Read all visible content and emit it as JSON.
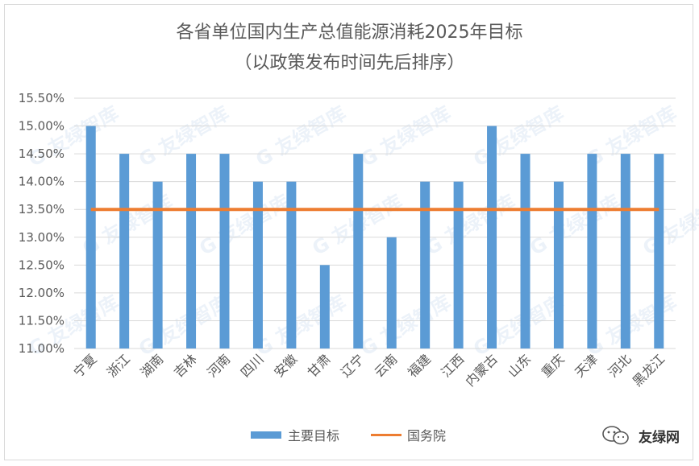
{
  "chart_data": {
    "type": "bar",
    "title": "各省单位国内生产总值能源消耗2025年目标",
    "subtitle": "（以政策发布时间先后排序）",
    "categories": [
      "宁夏",
      "浙江",
      "湖南",
      "吉林",
      "河南",
      "四川",
      "安徽",
      "甘肃",
      "辽宁",
      "云南",
      "福建",
      "江西",
      "内蒙古",
      "山东",
      "重庆",
      "天津",
      "河北",
      "黑龙江"
    ],
    "series": [
      {
        "name": "主要目标",
        "type": "bar",
        "color": "#5b9bd5",
        "values": [
          15.0,
          14.5,
          14.0,
          14.5,
          14.5,
          14.0,
          14.0,
          12.5,
          14.5,
          13.0,
          14.0,
          14.0,
          15.0,
          14.5,
          14.0,
          14.5,
          14.5,
          14.5
        ]
      },
      {
        "name": "国务院",
        "type": "line",
        "color": "#ed7d31",
        "values": [
          13.5,
          13.5,
          13.5,
          13.5,
          13.5,
          13.5,
          13.5,
          13.5,
          13.5,
          13.5,
          13.5,
          13.5,
          13.5,
          13.5,
          13.5,
          13.5,
          13.5,
          13.5
        ]
      }
    ],
    "ylim": [
      11.0,
      15.5
    ],
    "yticks": [
      "15.50%",
      "15.00%",
      "14.50%",
      "14.00%",
      "13.50%",
      "13.00%",
      "12.50%",
      "12.00%",
      "11.50%",
      "11.00%"
    ],
    "grid": true,
    "legend": "bottom"
  },
  "watermark": {
    "text": "友绿智库",
    "mark": "G"
  },
  "brand": {
    "text": "友绿网"
  }
}
